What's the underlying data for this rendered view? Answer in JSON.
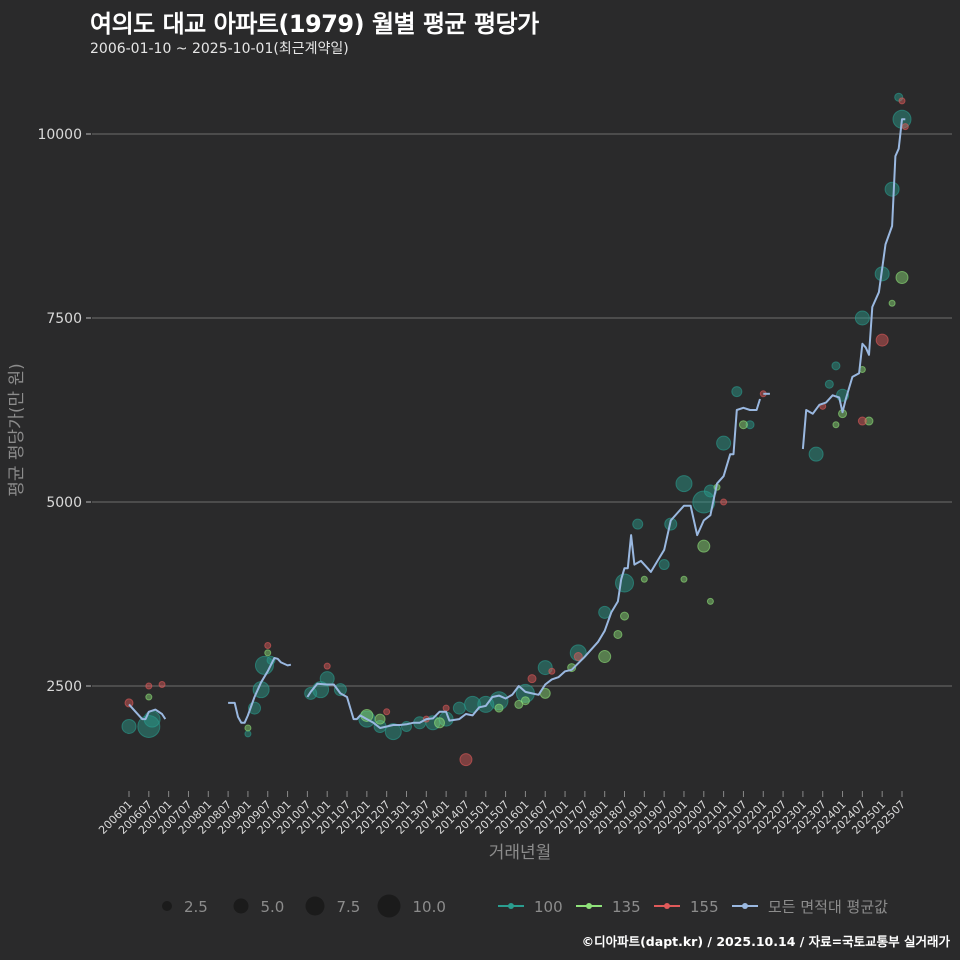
{
  "header": {
    "title": "여의도 대교 아파트(1979) 월별 평균 평당가",
    "subtitle": "2006-01-10 ~ 2025-10-01(최근계약일)"
  },
  "caption": "©디아파트(dapt.kr) / 2025.10.14 / 자료=국토교통부 실거래가",
  "colors": {
    "background": "#2a2a2b",
    "grid": "#6e6e6e",
    "s100": "#2a9d8f",
    "s135": "#8fe27a",
    "s155": "#e05a5a",
    "avg": "#9ab8e0"
  },
  "legend": {
    "sizes": [
      {
        "label": "2.5",
        "r": 5
      },
      {
        "label": "5.0",
        "r": 7.5
      },
      {
        "label": "7.5",
        "r": 9.5
      },
      {
        "label": "10.0",
        "r": 11.5
      }
    ],
    "series": [
      {
        "label": "100",
        "color": "#2a9d8f"
      },
      {
        "label": "135",
        "color": "#8fe27a"
      },
      {
        "label": "155",
        "color": "#e05a5a"
      },
      {
        "label": "모든 면적대 평균값",
        "color": "#9ab8e0"
      }
    ]
  },
  "chart_data": {
    "type": "line",
    "title": "여의도 대교 아파트(1979) 월별 평균 평당가",
    "subtitle": "2006-01-10 ~ 2025-10-01(최근계약일)",
    "xlabel": "거래년월",
    "ylabel": "평균 평당가(만 원)",
    "ylim": [
      1000,
      10700
    ],
    "yticks": [
      2500,
      5000,
      7500,
      10000
    ],
    "grid": true,
    "legend_position": "bottom",
    "x_ticks": [
      "200601",
      "200607",
      "200701",
      "200707",
      "200801",
      "200807",
      "200901",
      "200907",
      "201001",
      "201007",
      "201101",
      "201107",
      "201201",
      "201207",
      "201301",
      "201307",
      "201401",
      "201407",
      "201501",
      "201507",
      "201601",
      "201607",
      "201701",
      "201707",
      "201801",
      "201807",
      "201901",
      "201907",
      "202001",
      "202007",
      "202101",
      "202107",
      "202201",
      "202207",
      "202301",
      "202307",
      "202401",
      "202407",
      "202501",
      "202507"
    ],
    "series": [
      {
        "name": "모든 면적대 평균값",
        "segments": [
          [
            [
              "200601",
              2250
            ],
            [
              "200603",
              2150
            ],
            [
              "200605",
              2050
            ],
            [
              "200606",
              2050
            ],
            [
              "200607",
              2150
            ],
            [
              "200609",
              2180
            ],
            [
              "200611",
              2120
            ],
            [
              "200612",
              2050
            ]
          ],
          [
            [
              "200807",
              2270
            ],
            [
              "200809",
              2270
            ],
            [
              "200810",
              2080
            ],
            [
              "200811",
              2000
            ],
            [
              "200812",
              2000
            ],
            [
              "200901",
              2100
            ],
            [
              "200903",
              2350
            ],
            [
              "200905",
              2550
            ],
            [
              "200907",
              2700
            ],
            [
              "200909",
              2880
            ],
            [
              "200910",
              2870
            ],
            [
              "200911",
              2820
            ],
            [
              "201001",
              2780
            ],
            [
              "201002",
              2790
            ]
          ],
          [
            [
              "201007",
              2350
            ],
            [
              "201008",
              2420
            ],
            [
              "201010",
              2530
            ],
            [
              "201101",
              2520
            ],
            [
              "201103",
              2520
            ],
            [
              "201105",
              2400
            ],
            [
              "201107",
              2350
            ],
            [
              "201109",
              2050
            ],
            [
              "201110",
              2050
            ],
            [
              "201111",
              2100
            ],
            [
              "201201",
              2050
            ],
            [
              "201203",
              2000
            ],
            [
              "201205",
              1930
            ],
            [
              "201207",
              1950
            ],
            [
              "201209",
              1970
            ],
            [
              "201211",
              1970
            ],
            [
              "201301",
              1980
            ],
            [
              "201303",
              2000
            ],
            [
              "201305",
              2000
            ],
            [
              "201307",
              2050
            ],
            [
              "201309",
              2060
            ],
            [
              "201311",
              2150
            ],
            [
              "201401",
              2150
            ],
            [
              "201402",
              2030
            ],
            [
              "201405",
              2050
            ],
            [
              "201407",
              2120
            ],
            [
              "201409",
              2100
            ],
            [
              "201411",
              2210
            ],
            [
              "201501",
              2230
            ],
            [
              "201503",
              2350
            ],
            [
              "201505",
              2370
            ],
            [
              "201507",
              2330
            ],
            [
              "201509",
              2380
            ],
            [
              "201511",
              2500
            ],
            [
              "201601",
              2420
            ],
            [
              "201603",
              2400
            ],
            [
              "201605",
              2380
            ],
            [
              "201607",
              2520
            ],
            [
              "201609",
              2590
            ],
            [
              "201611",
              2620
            ],
            [
              "201701",
              2700
            ],
            [
              "201703",
              2720
            ],
            [
              "201705",
              2810
            ],
            [
              "201707",
              2900
            ],
            [
              "201709",
              3000
            ],
            [
              "201711",
              3100
            ],
            [
              "201801",
              3250
            ],
            [
              "201803",
              3500
            ],
            [
              "201805",
              3650
            ],
            [
              "201806",
              3950
            ],
            [
              "201807",
              4100
            ],
            [
              "201808",
              4100
            ],
            [
              "201809",
              4550
            ],
            [
              "201810",
              4150
            ],
            [
              "201812",
              4200
            ],
            [
              "201902",
              4100
            ],
            [
              "201903",
              4050
            ],
            [
              "201905",
              4200
            ],
            [
              "201907",
              4350
            ],
            [
              "201909",
              4750
            ],
            [
              "201911",
              4850
            ],
            [
              "202001",
              4950
            ],
            [
              "202003",
              4950
            ],
            [
              "202005",
              4550
            ],
            [
              "202007",
              4750
            ],
            [
              "202009",
              4820
            ],
            [
              "202011",
              5250
            ],
            [
              "202101",
              5350
            ],
            [
              "202103",
              5650
            ],
            [
              "202104",
              5650
            ],
            [
              "202105",
              6250
            ],
            [
              "202107",
              6280
            ],
            [
              "202109",
              6250
            ],
            [
              "202111",
              6250
            ],
            [
              "202112",
              6400
            ]
          ],
          [
            [
              "202201",
              6470
            ],
            [
              "202203",
              6470
            ]
          ],
          [
            [
              "202301",
              5720
            ],
            [
              "202302",
              6250
            ],
            [
              "202304",
              6200
            ],
            [
              "202306",
              6320
            ],
            [
              "202308",
              6350
            ],
            [
              "202310",
              6450
            ],
            [
              "202312",
              6420
            ],
            [
              "202401",
              6220
            ],
            [
              "202402",
              6400
            ],
            [
              "202404",
              6700
            ],
            [
              "202406",
              6750
            ],
            [
              "202407",
              7150
            ],
            [
              "202408",
              7100
            ],
            [
              "202409",
              7000
            ],
            [
              "202410",
              7650
            ],
            [
              "202412",
              7850
            ],
            [
              "202502",
              8500
            ],
            [
              "202504",
              8750
            ],
            [
              "202505",
              9700
            ],
            [
              "202506",
              9800
            ],
            [
              "202507",
              10200
            ],
            [
              "202508",
              10200
            ]
          ]
        ]
      }
    ],
    "points": {
      "100": [
        [
          "200601",
          1950,
          7
        ],
        [
          "200607",
          1950,
          11
        ],
        [
          "200608",
          2050,
          8
        ],
        [
          "200901",
          1850,
          3
        ],
        [
          "200903",
          2200,
          6
        ],
        [
          "200905",
          2450,
          8
        ],
        [
          "200906",
          2780,
          9
        ],
        [
          "200908",
          2850,
          4
        ],
        [
          "201008",
          2400,
          6
        ],
        [
          "201011",
          2450,
          8
        ],
        [
          "201101",
          2600,
          7
        ],
        [
          "201105",
          2450,
          6
        ],
        [
          "201201",
          2050,
          8
        ],
        [
          "201205",
          1950,
          6
        ],
        [
          "201209",
          1880,
          8
        ],
        [
          "201301",
          1950,
          5
        ],
        [
          "201305",
          2000,
          6
        ],
        [
          "201309",
          2000,
          7
        ],
        [
          "201401",
          2050,
          7
        ],
        [
          "201405",
          2200,
          6
        ],
        [
          "201409",
          2250,
          8
        ],
        [
          "201501",
          2250,
          8
        ],
        [
          "201505",
          2300,
          9
        ],
        [
          "201601",
          2400,
          9
        ],
        [
          "201607",
          2750,
          7
        ],
        [
          "201705",
          2950,
          8
        ],
        [
          "201801",
          3500,
          6
        ],
        [
          "201807",
          3900,
          9
        ],
        [
          "201811",
          4700,
          5
        ],
        [
          "201907",
          4150,
          5
        ],
        [
          "201909",
          4700,
          6
        ],
        [
          "202001",
          5250,
          8
        ],
        [
          "202007",
          5000,
          11
        ],
        [
          "202009",
          5150,
          6
        ],
        [
          "202101",
          5800,
          7
        ],
        [
          "202105",
          6500,
          5
        ],
        [
          "202109",
          6050,
          4
        ],
        [
          "202305",
          5650,
          7
        ],
        [
          "202309",
          6600,
          4
        ],
        [
          "202311",
          6850,
          4
        ],
        [
          "202401",
          6450,
          6
        ],
        [
          "202407",
          7500,
          7
        ],
        [
          "202501",
          8100,
          7
        ],
        [
          "202504",
          9250,
          7
        ],
        [
          "202506",
          10500,
          4
        ],
        [
          "202507",
          10200,
          9
        ]
      ],
      "135": [
        [
          "200607",
          2350,
          3
        ],
        [
          "200901",
          1930,
          3
        ],
        [
          "200907",
          2950,
          3
        ],
        [
          "201201",
          2100,
          6
        ],
        [
          "201205",
          2050,
          5
        ],
        [
          "201311",
          2000,
          5
        ],
        [
          "201505",
          2200,
          4
        ],
        [
          "201511",
          2250,
          4
        ],
        [
          "201601",
          2300,
          4
        ],
        [
          "201607",
          2400,
          5
        ],
        [
          "201703",
          2750,
          4
        ],
        [
          "201801",
          2900,
          6
        ],
        [
          "201805",
          3200,
          4
        ],
        [
          "201807",
          3450,
          4
        ],
        [
          "201901",
          3950,
          3
        ],
        [
          "202001",
          3950,
          3
        ],
        [
          "202007",
          4400,
          6
        ],
        [
          "202009",
          3650,
          3
        ],
        [
          "202011",
          5200,
          3
        ],
        [
          "202107",
          6050,
          4
        ],
        [
          "202311",
          6050,
          3
        ],
        [
          "202401",
          6200,
          4
        ],
        [
          "202407",
          6800,
          3
        ],
        [
          "202409",
          6100,
          4
        ],
        [
          "202504",
          7700,
          3
        ],
        [
          "202507",
          8050,
          6
        ]
      ],
      "155": [
        [
          "200601",
          2270,
          4
        ],
        [
          "200607",
          2500,
          3
        ],
        [
          "200611",
          2520,
          3
        ],
        [
          "200907",
          3050,
          3
        ],
        [
          "201101",
          2770,
          3
        ],
        [
          "201207",
          2150,
          3
        ],
        [
          "201307",
          2050,
          3
        ],
        [
          "201401",
          2200,
          3
        ],
        [
          "201407",
          1500,
          6
        ],
        [
          "201603",
          2600,
          4
        ],
        [
          "201609",
          2700,
          3
        ],
        [
          "201705",
          2900,
          4
        ],
        [
          "202101",
          5000,
          3
        ],
        [
          "202201",
          6470,
          3
        ],
        [
          "202307",
          6300,
          3
        ],
        [
          "202407",
          6100,
          4
        ],
        [
          "202501",
          7200,
          6
        ],
        [
          "202507",
          10450,
          3
        ],
        [
          "202508",
          10100,
          3
        ]
      ]
    }
  }
}
